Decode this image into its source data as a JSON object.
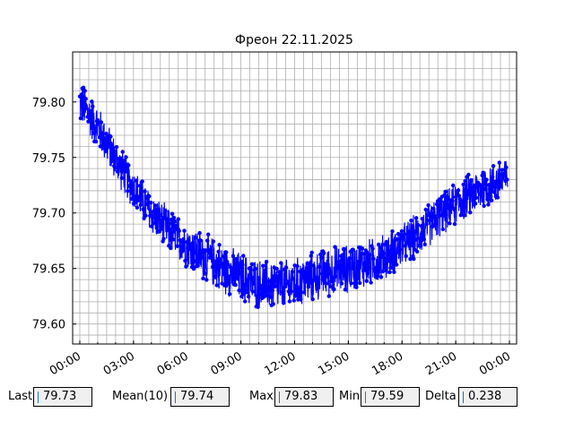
{
  "chart_data": {
    "type": "line",
    "title": "Фреон 22.11.2025",
    "xlabel": "",
    "ylabel": "",
    "x_unit": "hours",
    "xlim": [
      -0.4,
      24.4
    ],
    "ylim": [
      79.582,
      79.845
    ],
    "x_ticks": [
      0,
      3,
      6,
      9,
      12,
      15,
      18,
      21,
      24
    ],
    "x_tick_labels": [
      "00:00",
      "03:00",
      "06:00",
      "09:00",
      "12:00",
      "15:00",
      "18:00",
      "21:00",
      "00:00"
    ],
    "y_ticks": [
      79.6,
      79.65,
      79.7,
      79.75,
      79.8
    ],
    "y_tick_labels": [
      "79.60",
      "79.65",
      "79.70",
      "79.75",
      "79.80"
    ],
    "grid": true,
    "series": [
      {
        "color": "#0000ff",
        "marker": "circle",
        "trend": [
          {
            "x": 0.0,
            "y": 79.8,
            "spread": 0.022
          },
          {
            "x": 1.0,
            "y": 79.778,
            "spread": 0.022
          },
          {
            "x": 2.0,
            "y": 79.748,
            "spread": 0.021
          },
          {
            "x": 3.0,
            "y": 79.722,
            "spread": 0.021
          },
          {
            "x": 4.0,
            "y": 79.7,
            "spread": 0.021
          },
          {
            "x": 5.0,
            "y": 79.684,
            "spread": 0.022
          },
          {
            "x": 6.0,
            "y": 79.67,
            "spread": 0.023
          },
          {
            "x": 7.0,
            "y": 79.66,
            "spread": 0.024
          },
          {
            "x": 8.0,
            "y": 79.65,
            "spread": 0.025
          },
          {
            "x": 9.0,
            "y": 79.642,
            "spread": 0.025
          },
          {
            "x": 10.0,
            "y": 79.636,
            "spread": 0.025
          },
          {
            "x": 11.0,
            "y": 79.634,
            "spread": 0.025
          },
          {
            "x": 12.0,
            "y": 79.636,
            "spread": 0.025
          },
          {
            "x": 13.0,
            "y": 79.642,
            "spread": 0.025
          },
          {
            "x": 14.0,
            "y": 79.648,
            "spread": 0.025
          },
          {
            "x": 15.0,
            "y": 79.65,
            "spread": 0.024
          },
          {
            "x": 16.0,
            "y": 79.654,
            "spread": 0.024
          },
          {
            "x": 17.0,
            "y": 79.66,
            "spread": 0.023
          },
          {
            "x": 18.0,
            "y": 79.67,
            "spread": 0.022
          },
          {
            "x": 19.0,
            "y": 79.682,
            "spread": 0.022
          },
          {
            "x": 20.0,
            "y": 79.696,
            "spread": 0.021
          },
          {
            "x": 21.0,
            "y": 79.708,
            "spread": 0.021
          },
          {
            "x": 22.0,
            "y": 79.718,
            "spread": 0.022
          },
          {
            "x": 23.0,
            "y": 79.726,
            "spread": 0.022
          },
          {
            "x": 23.9,
            "y": 79.732,
            "spread": 0.022
          }
        ],
        "min": 79.59,
        "max": 79.83
      }
    ]
  },
  "stats": [
    {
      "label": "Last",
      "value": "79.73"
    },
    {
      "label": "Mean(10)",
      "value": "79.74"
    },
    {
      "label": "Max",
      "value": "79.83"
    },
    {
      "label": "Min",
      "value": "79.59"
    },
    {
      "label": "Delta",
      "value": "0.238"
    }
  ]
}
